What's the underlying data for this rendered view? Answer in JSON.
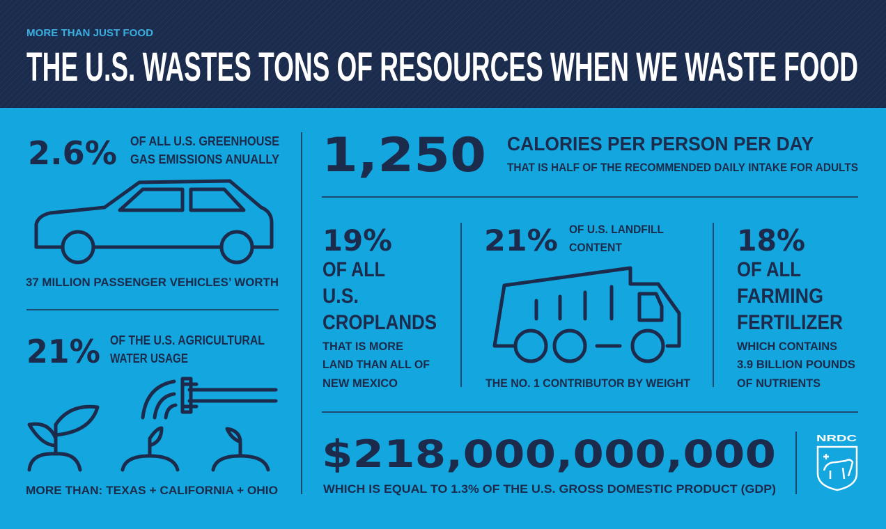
{
  "header": {
    "kicker": "MORE THAN JUST FOOD",
    "title": "THE U.S. WASTES TONS OF RESOURCES WHEN WE WASTE FOOD"
  },
  "emissions": {
    "figure": "2.6%",
    "text": [
      "OF ALL U.S. GREENHOUSE",
      "GAS EMISSIONS ANUALLY"
    ],
    "caption": "37 MILLION PASSENGER VEHICLES’ WORTH"
  },
  "water": {
    "figure": "21%",
    "text": [
      "OF THE U.S. AGRICULTURAL",
      "WATER USAGE"
    ],
    "caption": "MORE THAN: TEXAS + CALIFORNIA + OHIO"
  },
  "calories": {
    "figure": "1,250",
    "headline": "CALORIES PER PERSON PER DAY",
    "text": "THAT IS HALF OF THE RECOMMENDED DAILY INTAKE FOR ADULTS"
  },
  "croplands": {
    "figure": "19%",
    "headline": [
      "OF ALL",
      "U.S.",
      "CROPLANDS"
    ],
    "text": [
      "THAT IS MORE",
      "LAND THAN ALL OF",
      "NEW MEXICO"
    ]
  },
  "landfill": {
    "figure": "21%",
    "text": [
      "OF U.S. LANDFILL",
      "CONTENT"
    ],
    "caption": "THE NO. 1 CONTRIBUTOR BY WEIGHT"
  },
  "fertilizer": {
    "figure": "18%",
    "headline": [
      "OF ALL",
      "FARMING",
      "FERTILIZER"
    ],
    "text": [
      "WHICH CONTAINS",
      "3.9 BILLION POUNDS",
      "OF NUTRIENTS"
    ]
  },
  "cost": {
    "figure": "$218,000,000,000",
    "text": "WHICH IS EQUAL TO 1.3% OF THE U.S. GROSS DOMESTIC PRODUCT (GDP)"
  },
  "logo": "NRDC"
}
